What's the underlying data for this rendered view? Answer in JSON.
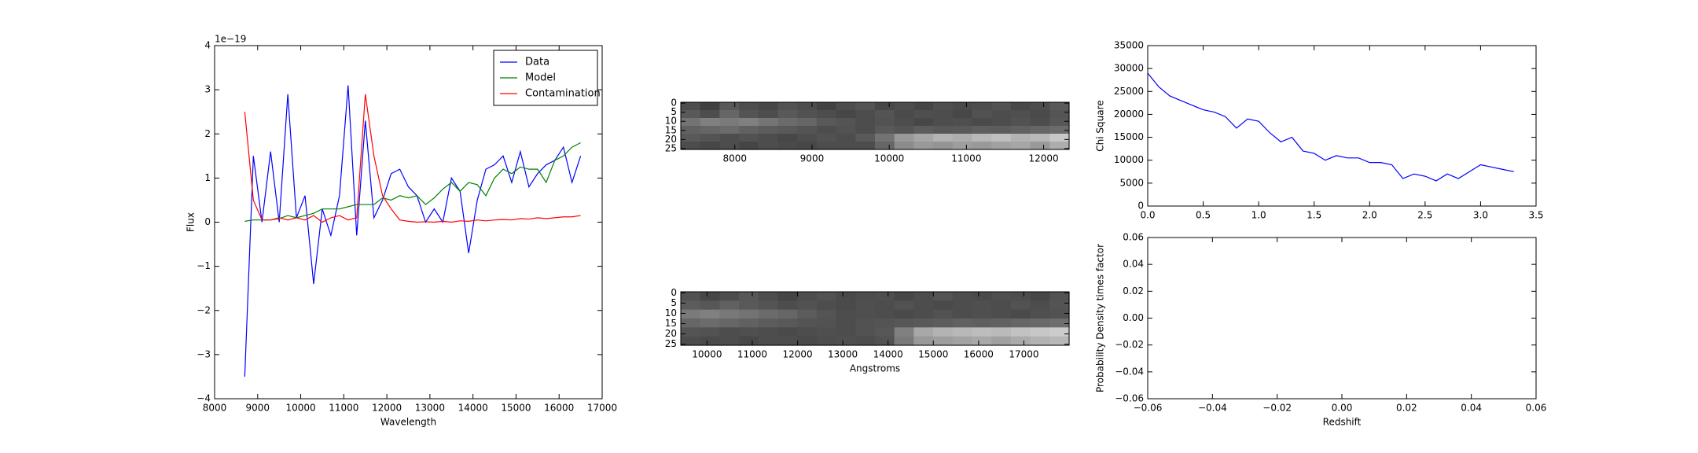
{
  "chart_data": [
    {
      "type": "line",
      "xlabel": "Wavelength",
      "ylabel": "Flux",
      "offset_text": "1e−19",
      "xlim": [
        8000,
        17000
      ],
      "ylim": [
        -4,
        4
      ],
      "xticks": [
        8000,
        9000,
        10000,
        11000,
        12000,
        13000,
        14000,
        15000,
        16000,
        17000
      ],
      "yticks": [
        {
          "value": -4,
          "label": "−4"
        },
        {
          "value": -3,
          "label": "−3"
        },
        {
          "value": -2,
          "label": "−2"
        },
        {
          "value": -1,
          "label": "−1"
        },
        0,
        1,
        2,
        3,
        4
      ],
      "legend": "upper right",
      "x": [
        8700,
        8900,
        9100,
        9300,
        9500,
        9700,
        9900,
        10100,
        10300,
        10500,
        10700,
        10900,
        11100,
        11300,
        11500,
        11700,
        11900,
        12100,
        12300,
        12500,
        12700,
        12900,
        13100,
        13300,
        13500,
        13700,
        13900,
        14100,
        14300,
        14500,
        14700,
        14900,
        15100,
        15300,
        15500,
        15700,
        15900,
        16100,
        16300,
        16500
      ],
      "series": [
        {
          "name": "Data",
          "color": "#0000ff",
          "values": [
            -3.5,
            1.5,
            0.0,
            1.6,
            0.0,
            2.9,
            0.1,
            0.6,
            -1.4,
            0.3,
            -0.3,
            0.6,
            3.1,
            -0.3,
            2.3,
            0.1,
            0.5,
            1.1,
            1.2,
            0.8,
            0.6,
            0.0,
            0.3,
            0.0,
            1.0,
            0.7,
            -0.7,
            0.5,
            1.2,
            1.3,
            1.5,
            0.9,
            1.6,
            0.8,
            1.1,
            1.3,
            1.4,
            1.7,
            0.9,
            1.5
          ]
        },
        {
          "name": "Model",
          "color": "#008000",
          "values": [
            0.02,
            0.05,
            0.05,
            0.05,
            0.08,
            0.15,
            0.1,
            0.15,
            0.2,
            0.3,
            0.3,
            0.3,
            0.35,
            0.4,
            0.4,
            0.4,
            0.55,
            0.5,
            0.6,
            0.55,
            0.6,
            0.4,
            0.55,
            0.75,
            0.9,
            0.7,
            0.9,
            0.85,
            0.6,
            1.0,
            1.2,
            1.1,
            1.25,
            1.2,
            1.2,
            0.9,
            1.4,
            1.5,
            1.7,
            1.8
          ]
        },
        {
          "name": "Contamination",
          "color": "#ff0000",
          "values": [
            2.5,
            0.5,
            0.05,
            0.05,
            0.1,
            0.05,
            0.1,
            0.05,
            0.15,
            0.0,
            0.1,
            0.15,
            0.05,
            0.1,
            2.9,
            1.5,
            0.6,
            0.3,
            0.05,
            0.02,
            0.0,
            0.01,
            0.0,
            0.02,
            0.0,
            0.03,
            0.02,
            0.05,
            0.03,
            0.05,
            0.06,
            0.05,
            0.08,
            0.07,
            0.1,
            0.08,
            0.1,
            0.12,
            0.12,
            0.15
          ]
        }
      ]
    },
    {
      "type": "image",
      "xlim": [
        7300,
        12330
      ],
      "ylim": [
        25.5,
        -0.5
      ],
      "xticks": [
        8000,
        9000,
        10000,
        11000,
        12000
      ],
      "yticks": [
        0,
        5,
        10,
        15,
        20,
        25
      ],
      "pixels": [
        [
          0.3,
          0.25,
          0.35,
          0.3,
          0.28,
          0.32,
          0.3,
          0.26,
          0.3,
          0.33,
          0.28,
          0.3,
          0.27,
          0.31,
          0.29,
          0.3,
          0.32,
          0.28,
          0.3,
          0.35
        ],
        [
          0.35,
          0.3,
          0.4,
          0.33,
          0.3,
          0.35,
          0.32,
          0.3,
          0.28,
          0.3,
          0.33,
          0.29,
          0.31,
          0.3,
          0.28,
          0.32,
          0.3,
          0.31,
          0.29,
          0.33
        ],
        [
          0.45,
          0.5,
          0.48,
          0.5,
          0.46,
          0.42,
          0.4,
          0.35,
          0.33,
          0.3,
          0.32,
          0.3,
          0.28,
          0.3,
          0.31,
          0.29,
          0.3,
          0.32,
          0.3,
          0.34
        ],
        [
          0.38,
          0.4,
          0.42,
          0.38,
          0.36,
          0.35,
          0.33,
          0.3,
          0.32,
          0.3,
          0.35,
          0.33,
          0.36,
          0.34,
          0.35,
          0.37,
          0.36,
          0.38,
          0.4,
          0.42
        ],
        [
          0.35,
          0.33,
          0.3,
          0.32,
          0.3,
          0.28,
          0.3,
          0.32,
          0.3,
          0.35,
          0.45,
          0.6,
          0.65,
          0.7,
          0.68,
          0.72,
          0.75,
          0.7,
          0.72,
          0.78
        ],
        [
          0.3,
          0.28,
          0.3,
          0.27,
          0.3,
          0.29,
          0.28,
          0.3,
          0.3,
          0.3,
          0.4,
          0.55,
          0.6,
          0.58,
          0.62,
          0.6,
          0.63,
          0.65,
          0.6,
          0.68
        ]
      ]
    },
    {
      "type": "image",
      "xlabel": "Angstroms",
      "xlim": [
        9420,
        18000
      ],
      "ylim": [
        25.5,
        -0.5
      ],
      "xticks": [
        10000,
        11000,
        12000,
        13000,
        14000,
        15000,
        16000,
        17000
      ],
      "yticks": [
        0,
        5,
        10,
        15,
        20,
        25
      ],
      "pixels": [
        [
          0.32,
          0.28,
          0.3,
          0.34,
          0.3,
          0.27,
          0.3,
          0.32,
          0.29,
          0.3,
          0.31,
          0.28,
          0.3,
          0.33,
          0.3,
          0.29,
          0.31,
          0.3,
          0.28,
          0.32
        ],
        [
          0.36,
          0.34,
          0.38,
          0.35,
          0.33,
          0.3,
          0.32,
          0.3,
          0.29,
          0.31,
          0.3,
          0.32,
          0.3,
          0.29,
          0.3,
          0.31,
          0.3,
          0.32,
          0.3,
          0.33
        ],
        [
          0.48,
          0.5,
          0.47,
          0.45,
          0.42,
          0.4,
          0.36,
          0.33,
          0.3,
          0.31,
          0.3,
          0.29,
          0.3,
          0.32,
          0.3,
          0.31,
          0.3,
          0.29,
          0.31,
          0.32
        ],
        [
          0.4,
          0.42,
          0.4,
          0.38,
          0.36,
          0.35,
          0.33,
          0.32,
          0.3,
          0.32,
          0.33,
          0.34,
          0.35,
          0.36,
          0.38,
          0.37,
          0.38,
          0.4,
          0.41,
          0.43
        ],
        [
          0.33,
          0.32,
          0.3,
          0.31,
          0.3,
          0.29,
          0.3,
          0.31,
          0.3,
          0.32,
          0.34,
          0.5,
          0.66,
          0.7,
          0.72,
          0.74,
          0.73,
          0.76,
          0.78,
          0.8
        ],
        [
          0.3,
          0.29,
          0.3,
          0.28,
          0.3,
          0.3,
          0.29,
          0.3,
          0.31,
          0.3,
          0.32,
          0.48,
          0.6,
          0.62,
          0.64,
          0.66,
          0.63,
          0.67,
          0.7,
          0.72
        ]
      ]
    },
    {
      "type": "line",
      "ylabel": "Chi Square",
      "xlim": [
        0,
        3.5
      ],
      "ylim": [
        0,
        35000
      ],
      "xticks": [
        {
          "value": 0,
          "label": "0.0"
        },
        0.5,
        {
          "value": 1,
          "label": "1.0"
        },
        1.5,
        {
          "value": 2,
          "label": "2.0"
        },
        2.5,
        {
          "value": 3,
          "label": "3.0"
        },
        3.5
      ],
      "yticks": [
        0,
        5000,
        10000,
        15000,
        20000,
        25000,
        30000,
        35000
      ],
      "x": [
        0,
        0.1,
        0.2,
        0.3,
        0.4,
        0.5,
        0.6,
        0.7,
        0.8,
        0.9,
        1.0,
        1.1,
        1.2,
        1.3,
        1.4,
        1.5,
        1.6,
        1.7,
        1.8,
        1.9,
        2.0,
        2.1,
        2.2,
        2.3,
        2.4,
        2.5,
        2.6,
        2.7,
        2.8,
        2.9,
        3.0,
        3.1,
        3.2,
        3.3
      ],
      "series": [
        {
          "color": "#0000ff",
          "values": [
            29000,
            26000,
            24000,
            23000,
            22000,
            21000,
            20500,
            19500,
            17000,
            19000,
            18500,
            16000,
            14000,
            15000,
            12000,
            11500,
            10000,
            11000,
            10500,
            10500,
            9500,
            9500,
            9000,
            6000,
            7000,
            6500,
            5500,
            7000,
            6000,
            7500,
            9000,
            8500,
            8000,
            7500
          ]
        }
      ]
    },
    {
      "type": "line",
      "xlabel": "Redshift",
      "ylabel": "Probability Density times factor",
      "xlim": [
        -0.06,
        0.06
      ],
      "ylim": [
        -0.06,
        0.06
      ],
      "xticks": [
        {
          "value": -0.06,
          "label": "−0.06"
        },
        {
          "value": -0.04,
          "label": "−0.04"
        },
        {
          "value": -0.02,
          "label": "−0.02"
        },
        {
          "value": 0,
          "label": "0.00"
        },
        0.02,
        0.04,
        0.06
      ],
      "yticks": [
        {
          "value": -0.06,
          "label": "−0.06"
        },
        {
          "value": -0.04,
          "label": "−0.04"
        },
        {
          "value": -0.02,
          "label": "−0.02"
        },
        {
          "value": 0,
          "label": "0.00"
        },
        0.02,
        0.04,
        0.06
      ],
      "series": []
    }
  ]
}
